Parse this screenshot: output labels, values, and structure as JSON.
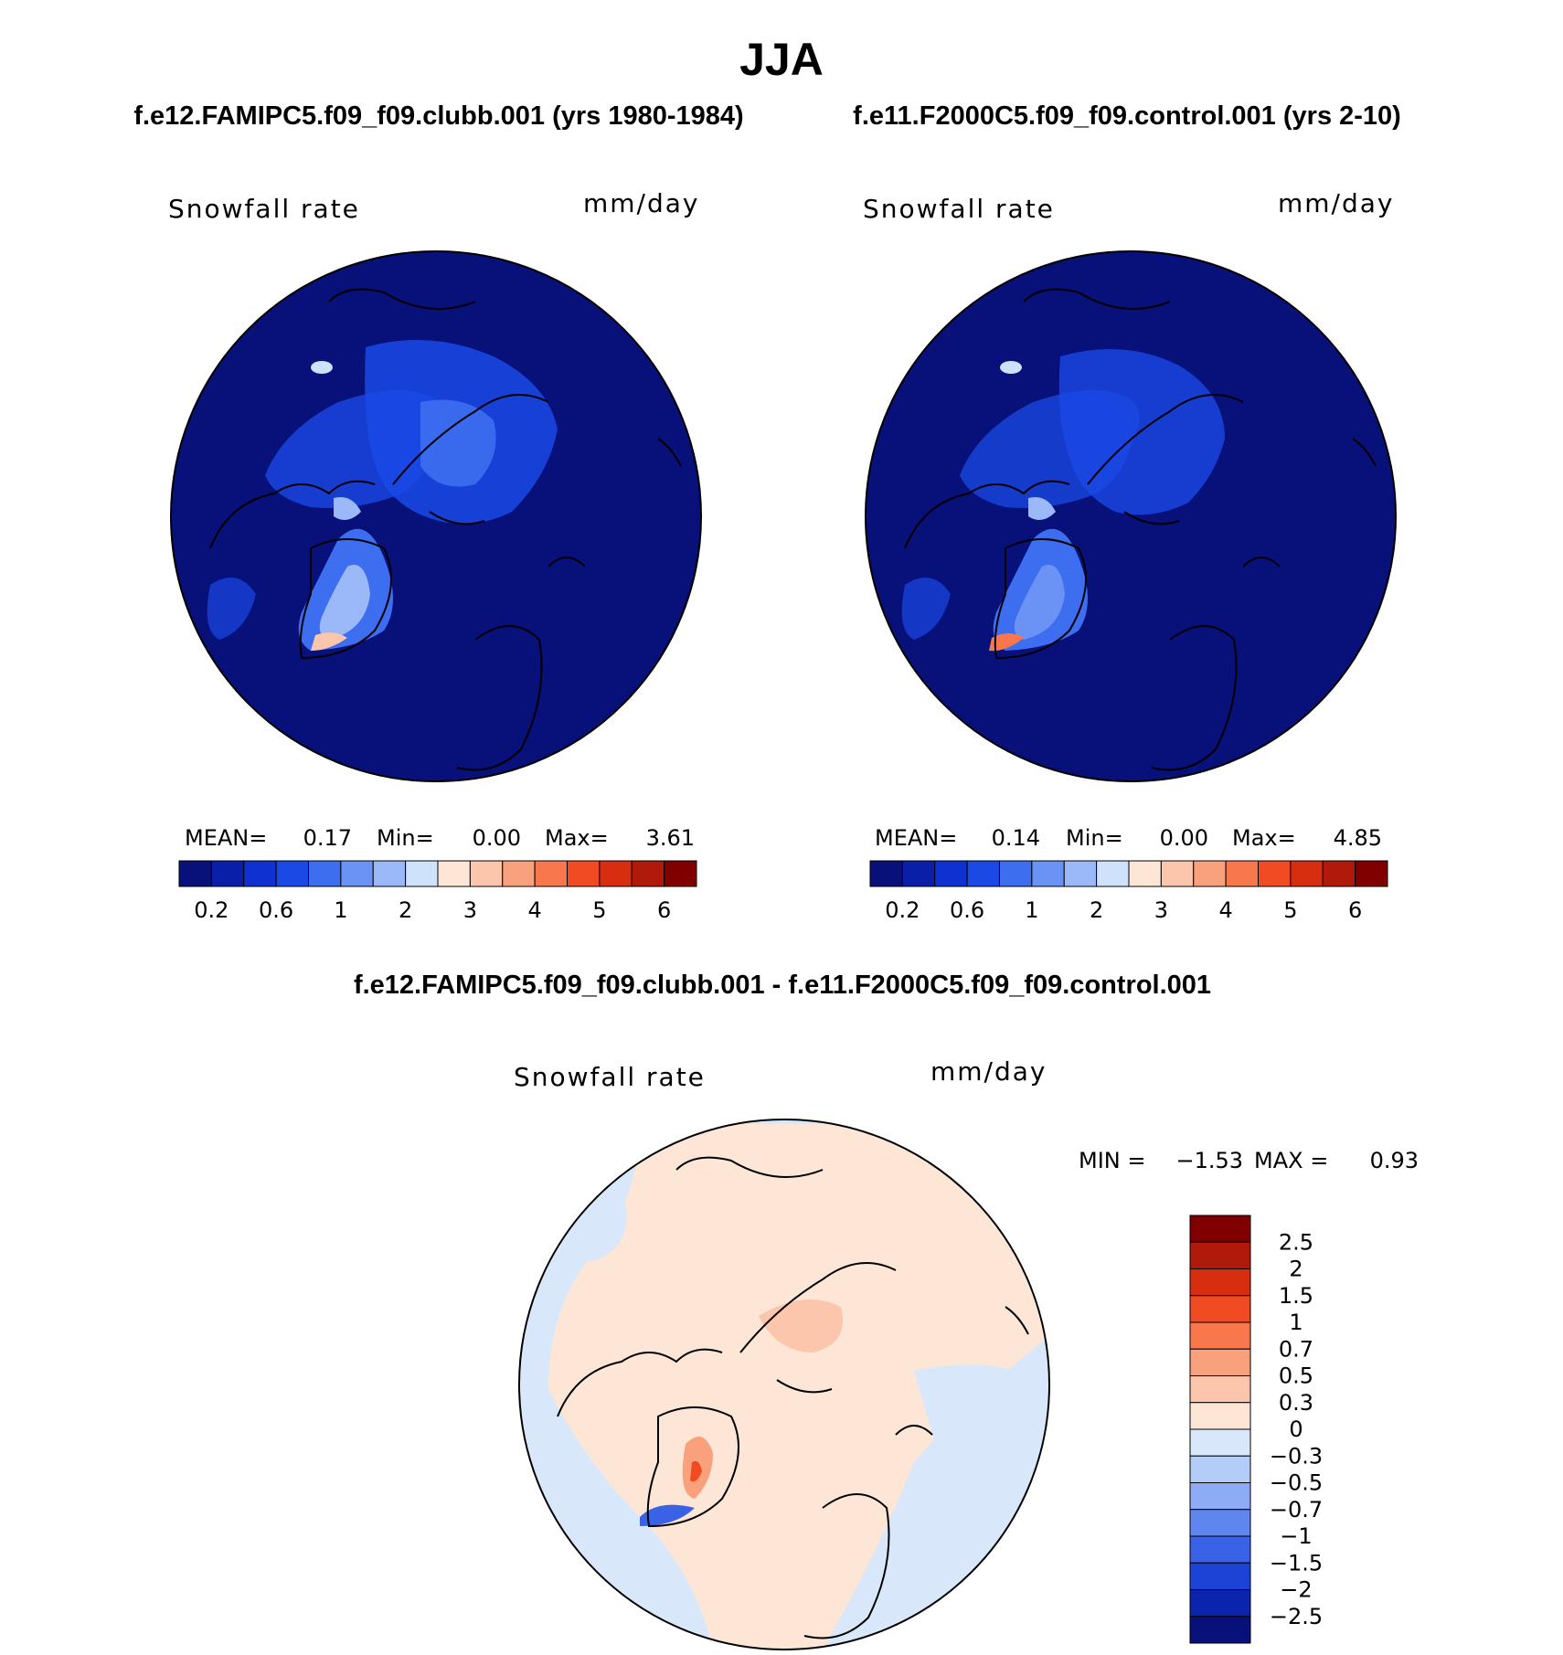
{
  "title": "JJA",
  "panels": {
    "left_title": "f.e12.FAMIPC5.f09_f09.clubb.001 (yrs 1980-1984)",
    "right_title": "f.e11.F2000C5.f09_f09.control.001 (yrs 2-10)",
    "diff_title": "f.e12.FAMIPC5.f09_f09.clubb.001 - f.e11.F2000C5.f09_f09.control.001"
  },
  "chart_data": [
    {
      "type": "heatmap",
      "projection": "north polar stereographic",
      "variable": "Snowfall rate",
      "units": "mm/day",
      "stats": {
        "mean_label": "MEAN=",
        "mean": "0.17",
        "min_label": "Min=",
        "min": "0.00",
        "max_label": "Max=",
        "max": "3.61"
      },
      "colorbar": {
        "colors": [
          "#08107a",
          "#0a1fa8",
          "#0f31d0",
          "#1a49e6",
          "#3d6ef0",
          "#6b93f5",
          "#9bb8f8",
          "#cfe2fb",
          "#fde6d6",
          "#fbc6ab",
          "#f9a07c",
          "#f8774d",
          "#f04b23",
          "#d72e10",
          "#b01a0a",
          "#800000"
        ],
        "tick_labels": [
          "0.2",
          "0.6",
          "1",
          "2",
          "3",
          "4",
          "5",
          "6"
        ]
      }
    },
    {
      "type": "heatmap",
      "projection": "north polar stereographic",
      "variable": "Snowfall rate",
      "units": "mm/day",
      "stats": {
        "mean_label": "MEAN=",
        "mean": "0.14",
        "min_label": "Min=",
        "min": "0.00",
        "max_label": "Max=",
        "max": "4.85"
      },
      "colorbar": {
        "colors": [
          "#08107a",
          "#0a1fa8",
          "#0f31d0",
          "#1a49e6",
          "#3d6ef0",
          "#6b93f5",
          "#9bb8f8",
          "#cfe2fb",
          "#fde6d6",
          "#fbc6ab",
          "#f9a07c",
          "#f8774d",
          "#f04b23",
          "#d72e10",
          "#b01a0a",
          "#800000"
        ],
        "tick_labels": [
          "0.2",
          "0.6",
          "1",
          "2",
          "3",
          "4",
          "5",
          "6"
        ]
      }
    },
    {
      "type": "heatmap",
      "projection": "north polar stereographic",
      "variable": "Snowfall rate",
      "units": "mm/day",
      "stats": {
        "min_label": "MIN =",
        "min": "−1.53",
        "max_label": "MAX =",
        "max": "0.93"
      },
      "colorbar": {
        "colors_top_to_bottom": [
          "#800000",
          "#b01a0a",
          "#d72e10",
          "#f04b23",
          "#f8774d",
          "#f9a07c",
          "#fbc6ab",
          "#fde6d6",
          "#d8e8fa",
          "#b4cdf8",
          "#8eabf5",
          "#5f85ee",
          "#3a62e6",
          "#1d43d6",
          "#0b24ad",
          "#08107a"
        ],
        "tick_labels": [
          "2.5",
          "2",
          "1.5",
          "1",
          "0.7",
          "0.5",
          "0.3",
          "0",
          "−0.3",
          "−0.5",
          "−0.7",
          "−1",
          "−1.5",
          "−2",
          "−2.5"
        ]
      }
    }
  ]
}
